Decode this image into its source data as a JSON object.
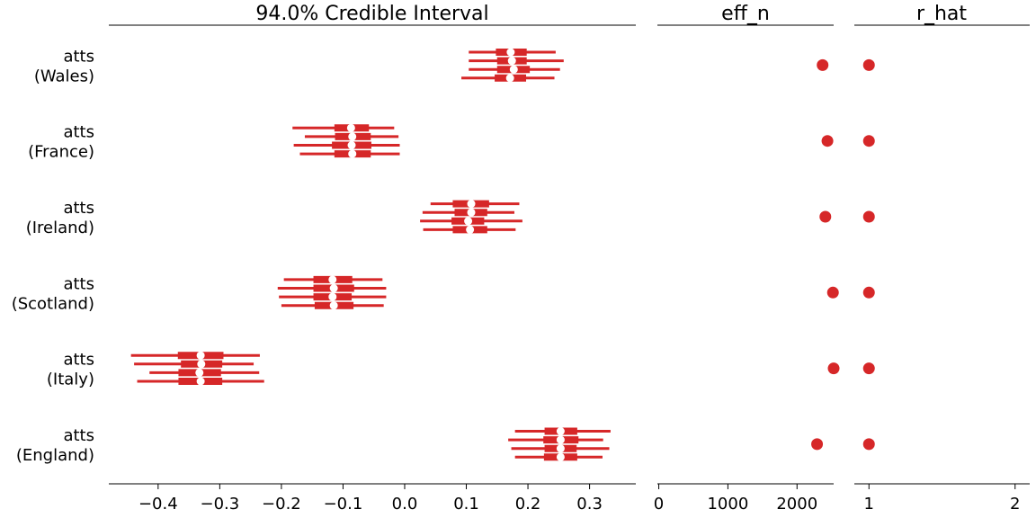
{
  "chart_data": {
    "type": "forest",
    "color": "#d62728",
    "rows": [
      {
        "label_line1": "atts",
        "label_line2": "(Wales)",
        "eff_n": 2370,
        "r_hat": 1.0,
        "chains": [
          {
            "hdi": [
              0.104,
              0.245
            ],
            "iqr": [
              0.148,
              0.198
            ],
            "median": 0.172
          },
          {
            "hdi": [
              0.104,
              0.258
            ],
            "iqr": [
              0.15,
              0.198
            ],
            "median": 0.174
          },
          {
            "hdi": [
              0.104,
              0.252
            ],
            "iqr": [
              0.15,
              0.203
            ],
            "median": 0.177
          },
          {
            "hdi": [
              0.092,
              0.243
            ],
            "iqr": [
              0.146,
              0.197
            ],
            "median": 0.171
          }
        ]
      },
      {
        "label_line1": "atts",
        "label_line2": "(France)",
        "eff_n": 2440,
        "r_hat": 1.0,
        "chains": [
          {
            "hdi": [
              -0.182,
              -0.017
            ],
            "iqr": [
              -0.114,
              -0.058
            ],
            "median": -0.087
          },
          {
            "hdi": [
              -0.162,
              -0.01
            ],
            "iqr": [
              -0.113,
              -0.055
            ],
            "median": -0.085
          },
          {
            "hdi": [
              -0.18,
              -0.008
            ],
            "iqr": [
              -0.118,
              -0.054
            ],
            "median": -0.086
          },
          {
            "hdi": [
              -0.17,
              -0.008
            ],
            "iqr": [
              -0.114,
              -0.055
            ],
            "median": -0.085
          }
        ]
      },
      {
        "label_line1": "atts",
        "label_line2": "(Ireland)",
        "eff_n": 2410,
        "r_hat": 1.0,
        "chains": [
          {
            "hdi": [
              0.042,
              0.186
            ],
            "iqr": [
              0.078,
              0.137
            ],
            "median": 0.108
          },
          {
            "hdi": [
              0.029,
              0.178
            ],
            "iqr": [
              0.081,
              0.134
            ],
            "median": 0.108
          },
          {
            "hdi": [
              0.025,
              0.191
            ],
            "iqr": [
              0.076,
              0.129
            ],
            "median": 0.103
          },
          {
            "hdi": [
              0.03,
              0.18
            ],
            "iqr": [
              0.078,
              0.134
            ],
            "median": 0.106
          }
        ]
      },
      {
        "label_line1": "atts",
        "label_line2": "(Scotland)",
        "eff_n": 2520,
        "r_hat": 1.0,
        "chains": [
          {
            "hdi": [
              -0.196,
              -0.036
            ],
            "iqr": [
              -0.148,
              -0.085
            ],
            "median": -0.117
          },
          {
            "hdi": [
              -0.206,
              -0.03
            ],
            "iqr": [
              -0.148,
              -0.082
            ],
            "median": -0.115
          },
          {
            "hdi": [
              -0.204,
              -0.03
            ],
            "iqr": [
              -0.148,
              -0.086
            ],
            "median": -0.117
          },
          {
            "hdi": [
              -0.2,
              -0.034
            ],
            "iqr": [
              -0.146,
              -0.083
            ],
            "median": -0.115
          }
        ]
      },
      {
        "label_line1": "atts",
        "label_line2": "(Italy)",
        "eff_n": 2530,
        "r_hat": 1.0,
        "chains": [
          {
            "hdi": [
              -0.444,
              -0.235
            ],
            "iqr": [
              -0.368,
              -0.294
            ],
            "median": -0.331
          },
          {
            "hdi": [
              -0.439,
              -0.245
            ],
            "iqr": [
              -0.363,
              -0.296
            ],
            "median": -0.33
          },
          {
            "hdi": [
              -0.414,
              -0.236
            ],
            "iqr": [
              -0.367,
              -0.298
            ],
            "median": -0.333
          },
          {
            "hdi": [
              -0.434,
              -0.228
            ],
            "iqr": [
              -0.367,
              -0.296
            ],
            "median": -0.331
          }
        ]
      },
      {
        "label_line1": "atts",
        "label_line2": "(England)",
        "eff_n": 2290,
        "r_hat": 1.0,
        "chains": [
          {
            "hdi": [
              0.179,
              0.334
            ],
            "iqr": [
              0.227,
              0.28
            ],
            "median": 0.253
          },
          {
            "hdi": [
              0.168,
              0.322
            ],
            "iqr": [
              0.225,
              0.282
            ],
            "median": 0.253
          },
          {
            "hdi": [
              0.173,
              0.332
            ],
            "iqr": [
              0.227,
              0.279
            ],
            "median": 0.253
          },
          {
            "hdi": [
              0.179,
              0.321
            ],
            "iqr": [
              0.226,
              0.28
            ],
            "median": 0.253
          }
        ]
      }
    ],
    "panels": {
      "interval": {
        "title": "94.0% Credible Interval",
        "xlim": [
          -0.48,
          0.375
        ],
        "ticks": [
          -0.4,
          -0.3,
          -0.2,
          -0.1,
          0.0,
          0.1,
          0.2,
          0.3
        ],
        "tick_labels": [
          "−0.4",
          "−0.3",
          "−0.2",
          "−0.1",
          "0.0",
          "0.1",
          "0.2",
          "0.3"
        ]
      },
      "eff_n": {
        "title": "eff_n",
        "xlim": [
          -20,
          2530
        ],
        "ticks": [
          0,
          1000,
          2000
        ],
        "tick_labels": [
          "0",
          "1000",
          "2000"
        ]
      },
      "r_hat": {
        "title": "r_hat",
        "xlim": [
          0.9,
          2.1
        ],
        "ticks": [
          1,
          2
        ],
        "tick_labels": [
          "1",
          "2"
        ]
      }
    }
  }
}
